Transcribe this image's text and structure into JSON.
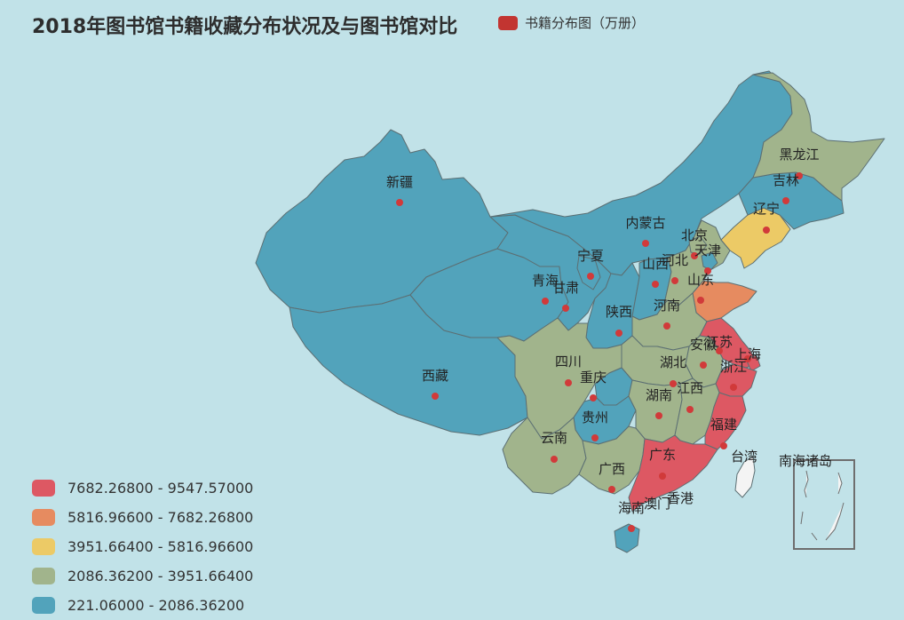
{
  "title": "2018年图书馆书籍收藏分布状况及与图书馆对比",
  "series_legend": {
    "label": "书籍分布图（万册）",
    "color": "#c23531"
  },
  "visual_map": [
    {
      "label": "7682.26800 - 9547.57000",
      "color": "#dd5863"
    },
    {
      "label": "5816.96600 - 7682.26800",
      "color": "#e68b60"
    },
    {
      "label": "3951.66400 - 5816.96600",
      "color": "#ecca66"
    },
    {
      "label": "2086.36200 - 3951.66400",
      "color": "#a1b48c"
    },
    {
      "label": "221.06000 - 2086.36200",
      "color": "#52a3bb"
    }
  ],
  "colors": {
    "background": "#c1e2e8",
    "border": "#5c6f73",
    "marker": "#d13a3a",
    "inset_box": "#6e6e6e",
    "inset_land": "#f4f4f4"
  },
  "regions": [
    {
      "name": "新疆",
      "class": 4
    },
    {
      "name": "西藏",
      "class": 4
    },
    {
      "name": "青海",
      "class": 4
    },
    {
      "name": "甘肃",
      "class": 4
    },
    {
      "name": "宁夏",
      "class": 4
    },
    {
      "name": "内蒙古",
      "class": 4
    },
    {
      "name": "陕西",
      "class": 4
    },
    {
      "name": "山西",
      "class": 4
    },
    {
      "name": "河北",
      "class": 3
    },
    {
      "name": "北京",
      "class": 3
    },
    {
      "name": "天津",
      "class": 4
    },
    {
      "name": "辽宁",
      "class": 2
    },
    {
      "name": "吉林",
      "class": 4
    },
    {
      "name": "黑龙江",
      "class": 3
    },
    {
      "name": "山东",
      "class": 1
    },
    {
      "name": "河南",
      "class": 3
    },
    {
      "name": "江苏",
      "class": 0
    },
    {
      "name": "安徽",
      "class": 3
    },
    {
      "name": "上海",
      "class": 0
    },
    {
      "name": "浙江",
      "class": 0
    },
    {
      "name": "湖北",
      "class": 3
    },
    {
      "name": "四川",
      "class": 3
    },
    {
      "name": "重庆",
      "class": 4
    },
    {
      "name": "贵州",
      "class": 4
    },
    {
      "name": "湖南",
      "class": 3
    },
    {
      "name": "江西",
      "class": 3
    },
    {
      "name": "福建",
      "class": 0
    },
    {
      "name": "云南",
      "class": 3
    },
    {
      "name": "广西",
      "class": 3
    },
    {
      "name": "广东",
      "class": 0
    },
    {
      "name": "海南",
      "class": 4
    },
    {
      "name": "台湾",
      "class": -1
    },
    {
      "name": "香港",
      "class": -1
    },
    {
      "name": "澳门",
      "class": -1
    }
  ],
  "inset_label": "南海诸岛"
}
